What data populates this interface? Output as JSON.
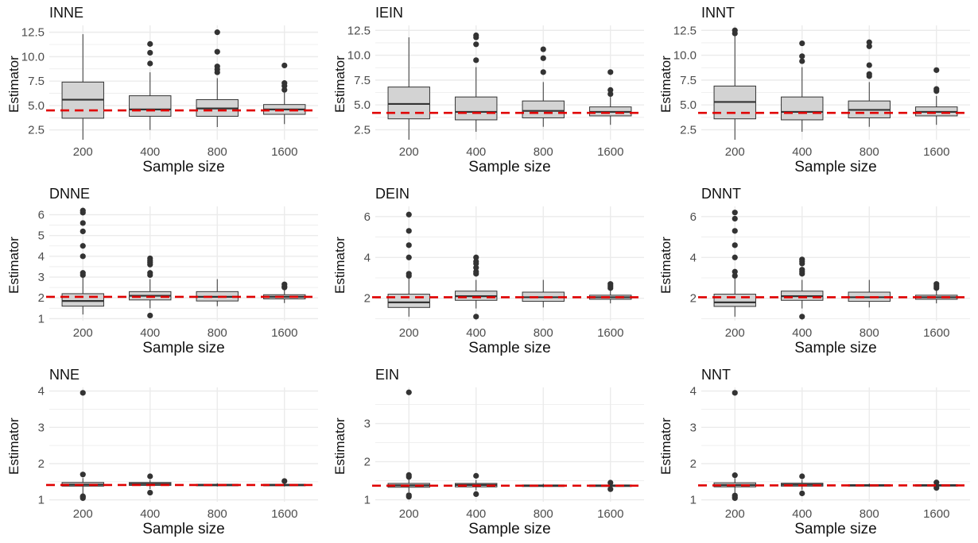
{
  "chart_data": [
    {
      "type": "box",
      "title": "INNE",
      "xlabel": "Sample size",
      "ylabel": "Estimator",
      "categories": [
        "200",
        "400",
        "800",
        "1600"
      ],
      "ylim": [
        1.5,
        13.2
      ],
      "yticks": [
        "2.5",
        "5.0",
        "7.5",
        "10.0",
        "12.5"
      ],
      "reference": 4.5,
      "boxes": [
        {
          "lo": 1.5,
          "q1": 3.7,
          "med": 5.6,
          "q3": 7.4,
          "hi": 12.3,
          "out": []
        },
        {
          "lo": 2.5,
          "q1": 3.9,
          "med": 4.6,
          "q3": 6.0,
          "hi": 8.4,
          "out": [
            9.3,
            10.4,
            11.3
          ]
        },
        {
          "lo": 2.8,
          "q1": 3.9,
          "med": 4.7,
          "q3": 5.6,
          "hi": 7.8,
          "out": [
            8.4,
            8.7,
            9.0,
            10.5,
            12.5
          ]
        },
        {
          "lo": 3.1,
          "q1": 4.1,
          "med": 4.6,
          "q3": 5.1,
          "hi": 6.3,
          "out": [
            6.6,
            7.0,
            7.3,
            9.1
          ]
        }
      ]
    },
    {
      "type": "box",
      "title": "IEIN",
      "xlabel": "Sample size",
      "ylabel": "Estimator",
      "categories": [
        "200",
        "400",
        "800",
        "1600"
      ],
      "ylim": [
        1.5,
        13.0
      ],
      "yticks": [
        "2.5",
        "5.0",
        "7.5",
        "10.0",
        "12.5"
      ],
      "reference": 4.2,
      "boxes": [
        {
          "lo": 1.5,
          "q1": 3.6,
          "med": 5.1,
          "q3": 6.8,
          "hi": 11.8,
          "out": []
        },
        {
          "lo": 2.3,
          "q1": 3.5,
          "med": 4.3,
          "q3": 5.8,
          "hi": 8.8,
          "out": [
            9.5,
            11.1,
            11.8,
            12.0
          ]
        },
        {
          "lo": 2.8,
          "q1": 3.7,
          "med": 4.4,
          "q3": 5.4,
          "hi": 7.3,
          "out": [
            8.3,
            9.7,
            10.6
          ]
        },
        {
          "lo": 3.0,
          "q1": 3.9,
          "med": 4.3,
          "q3": 4.8,
          "hi": 5.8,
          "out": [
            6.1,
            6.5,
            8.3
          ]
        }
      ]
    },
    {
      "type": "box",
      "title": "INNT",
      "xlabel": "Sample size",
      "ylabel": "Estimator",
      "categories": [
        "200",
        "400",
        "800",
        "1600"
      ],
      "ylim": [
        1.5,
        13.0
      ],
      "yticks": [
        "2.5",
        "5.0",
        "7.5",
        "10.0",
        "12.5"
      ],
      "reference": 4.2,
      "boxes": [
        {
          "lo": 1.5,
          "q1": 3.6,
          "med": 5.3,
          "q3": 6.9,
          "hi": 12.0,
          "out": [
            12.2,
            12.5
          ]
        },
        {
          "lo": 2.3,
          "q1": 3.5,
          "med": 4.3,
          "q3": 5.8,
          "hi": 8.8,
          "out": [
            9.4,
            9.9,
            11.2
          ]
        },
        {
          "lo": 2.8,
          "q1": 3.7,
          "med": 4.5,
          "q3": 5.4,
          "hi": 7.3,
          "out": [
            7.9,
            8.1,
            9.0,
            10.9,
            11.3
          ]
        },
        {
          "lo": 3.0,
          "q1": 3.9,
          "med": 4.3,
          "q3": 4.8,
          "hi": 5.9,
          "out": [
            6.4,
            6.6,
            8.5
          ]
        }
      ]
    },
    {
      "type": "box",
      "title": "DNNE",
      "xlabel": "Sample size",
      "ylabel": "Estimator",
      "categories": [
        "200",
        "400",
        "800",
        "1600"
      ],
      "ylim": [
        0.9,
        6.4
      ],
      "yticks": [
        "1",
        "2",
        "3",
        "4",
        "5",
        "6"
      ],
      "reference": 2.05,
      "boxes": [
        {
          "lo": 1.2,
          "q1": 1.6,
          "med": 1.85,
          "q3": 2.2,
          "hi": 3.0,
          "out": [
            3.1,
            3.2,
            4.0,
            4.5,
            5.2,
            5.6,
            6.1,
            6.2
          ]
        },
        {
          "lo": 1.5,
          "q1": 1.9,
          "med": 2.1,
          "q3": 2.3,
          "hi": 2.9,
          "out": [
            1.15,
            3.1,
            3.2,
            3.6,
            3.7,
            3.8,
            3.9
          ]
        },
        {
          "lo": 1.6,
          "q1": 1.85,
          "med": 2.05,
          "q3": 2.3,
          "hi": 2.9,
          "out": []
        },
        {
          "lo": 1.75,
          "q1": 1.95,
          "med": 2.05,
          "q3": 2.15,
          "hi": 2.4,
          "out": [
            2.5,
            2.55,
            2.65
          ]
        }
      ]
    },
    {
      "type": "box",
      "title": "DEIN",
      "xlabel": "Sample size",
      "ylabel": "Estimator",
      "categories": [
        "200",
        "400",
        "800",
        "1600"
      ],
      "ylim": [
        0.9,
        6.5
      ],
      "yticks": [
        "2",
        "4",
        "6"
      ],
      "reference": 2.05,
      "boxes": [
        {
          "lo": 1.1,
          "q1": 1.55,
          "med": 1.8,
          "q3": 2.2,
          "hi": 3.0,
          "out": [
            3.1,
            3.2,
            4.0,
            4.6,
            5.3,
            6.1
          ]
        },
        {
          "lo": 1.5,
          "q1": 1.9,
          "med": 2.1,
          "q3": 2.35,
          "hi": 2.9,
          "out": [
            1.1,
            3.2,
            3.3,
            3.5,
            3.7,
            3.8,
            4.0
          ]
        },
        {
          "lo": 1.55,
          "q1": 1.85,
          "med": 2.05,
          "q3": 2.3,
          "hi": 2.9,
          "out": []
        },
        {
          "lo": 1.75,
          "q1": 1.95,
          "med": 2.05,
          "q3": 2.15,
          "hi": 2.4,
          "out": [
            2.5,
            2.6,
            2.7
          ]
        }
      ]
    },
    {
      "type": "box",
      "title": "DNNT",
      "xlabel": "Sample size",
      "ylabel": "Estimator",
      "categories": [
        "200",
        "400",
        "800",
        "1600"
      ],
      "ylim": [
        0.9,
        6.5
      ],
      "yticks": [
        "2",
        "4",
        "6"
      ],
      "reference": 2.05,
      "boxes": [
        {
          "lo": 1.1,
          "q1": 1.6,
          "med": 1.8,
          "q3": 2.2,
          "hi": 3.0,
          "out": [
            3.1,
            3.3,
            4.0,
            4.6,
            5.3,
            5.9,
            6.2
          ]
        },
        {
          "lo": 1.5,
          "q1": 1.9,
          "med": 2.1,
          "q3": 2.35,
          "hi": 2.9,
          "out": [
            1.1,
            3.2,
            3.3,
            3.4,
            3.7,
            3.8,
            3.9
          ]
        },
        {
          "lo": 1.55,
          "q1": 1.85,
          "med": 2.05,
          "q3": 2.3,
          "hi": 2.9,
          "out": []
        },
        {
          "lo": 1.75,
          "q1": 1.95,
          "med": 2.05,
          "q3": 2.15,
          "hi": 2.4,
          "out": [
            2.5,
            2.6,
            2.7
          ]
        }
      ]
    },
    {
      "type": "box",
      "title": "NNE",
      "xlabel": "Sample size",
      "ylabel": "Estimator",
      "categories": [
        "200",
        "400",
        "800",
        "1600"
      ],
      "ylim": [
        0.95,
        4.1
      ],
      "yticks": [
        "1",
        "2",
        "3",
        "4"
      ],
      "reference": 1.41,
      "boxes": [
        {
          "lo": 1.15,
          "q1": 1.38,
          "med": 1.42,
          "q3": 1.48,
          "hi": 1.6,
          "out": [
            1.05,
            1.08,
            1.1,
            1.7,
            3.95
          ]
        },
        {
          "lo": 1.3,
          "q1": 1.4,
          "med": 1.44,
          "q3": 1.48,
          "hi": 1.55,
          "out": [
            1.2,
            1.65
          ]
        },
        {
          "lo": 1.37,
          "q1": 1.39,
          "med": 1.41,
          "q3": 1.43,
          "hi": 1.46,
          "out": []
        },
        {
          "lo": 1.37,
          "q1": 1.39,
          "med": 1.41,
          "q3": 1.43,
          "hi": 1.46,
          "out": [
            1.52
          ]
        }
      ]
    },
    {
      "type": "box",
      "title": "EIN",
      "xlabel": "Sample size",
      "ylabel": "Estimator",
      "categories": [
        "200",
        "400",
        "800",
        "1600"
      ],
      "ylim": [
        0.95,
        3.95
      ],
      "yticks": [
        "1",
        "2",
        "3"
      ],
      "reference": 1.37,
      "boxes": [
        {
          "lo": 1.2,
          "q1": 1.33,
          "med": 1.38,
          "q3": 1.43,
          "hi": 1.55,
          "out": [
            1.08,
            1.12,
            1.6,
            1.65,
            3.82
          ]
        },
        {
          "lo": 1.25,
          "q1": 1.34,
          "med": 1.39,
          "q3": 1.43,
          "hi": 1.52,
          "out": [
            1.15,
            1.63
          ]
        },
        {
          "lo": 1.33,
          "q1": 1.35,
          "med": 1.37,
          "q3": 1.39,
          "hi": 1.42,
          "out": []
        },
        {
          "lo": 1.33,
          "q1": 1.35,
          "med": 1.37,
          "q3": 1.39,
          "hi": 1.42,
          "out": [
            1.28,
            1.45
          ]
        }
      ]
    },
    {
      "type": "box",
      "title": "NNT",
      "xlabel": "Sample size",
      "ylabel": "Estimator",
      "categories": [
        "200",
        "400",
        "800",
        "1600"
      ],
      "ylim": [
        0.95,
        4.1
      ],
      "yticks": [
        "1",
        "2",
        "3",
        "4"
      ],
      "reference": 1.4,
      "boxes": [
        {
          "lo": 1.15,
          "q1": 1.36,
          "med": 1.41,
          "q3": 1.47,
          "hi": 1.6,
          "out": [
            1.05,
            1.08,
            1.12,
            1.68,
            3.95
          ]
        },
        {
          "lo": 1.28,
          "q1": 1.38,
          "med": 1.42,
          "q3": 1.46,
          "hi": 1.55,
          "out": [
            1.18,
            1.65
          ]
        },
        {
          "lo": 1.36,
          "q1": 1.38,
          "med": 1.4,
          "q3": 1.42,
          "hi": 1.45,
          "out": []
        },
        {
          "lo": 1.36,
          "q1": 1.38,
          "med": 1.4,
          "q3": 1.42,
          "hi": 1.45,
          "out": [
            1.33,
            1.48
          ]
        }
      ]
    }
  ],
  "style": {
    "box_fill": "#d3d3d3",
    "box_stroke": "#333333",
    "reference_color": "#e00000",
    "grid_color": "#ebebeb",
    "tick_color": "#4d4d4d"
  }
}
